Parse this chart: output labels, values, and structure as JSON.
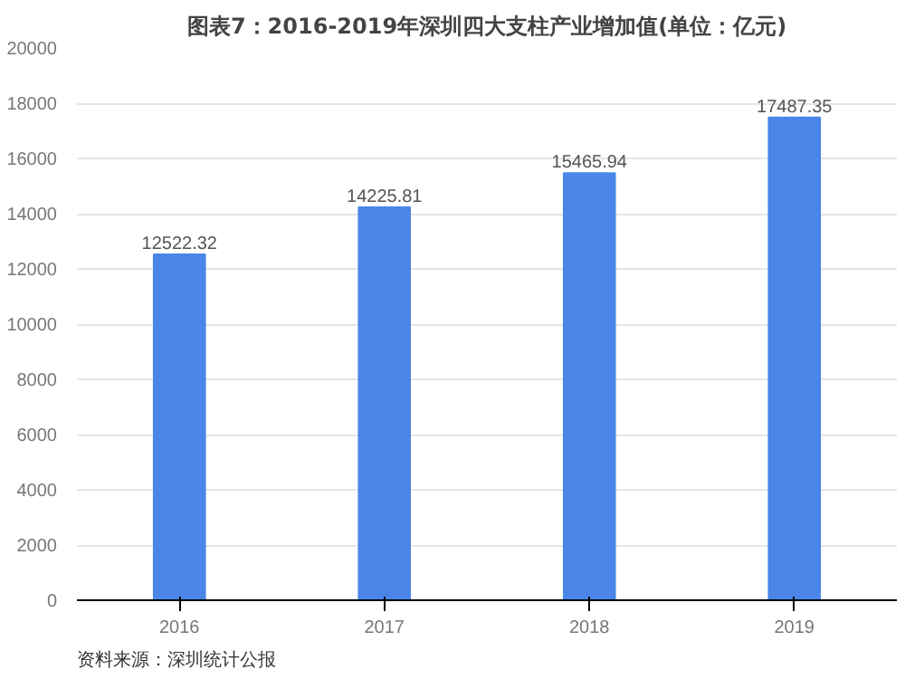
{
  "chart_data": {
    "type": "bar",
    "title": "图表7：2016-2019年深圳四大支柱产业增加值(单位：亿元)",
    "categories": [
      "2016",
      "2017",
      "2018",
      "2019"
    ],
    "values": [
      12522.32,
      14225.81,
      15465.94,
      17487.35
    ],
    "color": "#4a86e8",
    "ylim": [
      0,
      20000
    ],
    "yticks": [
      0,
      2000,
      4000,
      6000,
      8000,
      10000,
      12000,
      14000,
      16000,
      18000,
      20000
    ],
    "grid": "y",
    "data_labels": true,
    "annotations": [
      "资料来源：深圳统计公报"
    ]
  }
}
